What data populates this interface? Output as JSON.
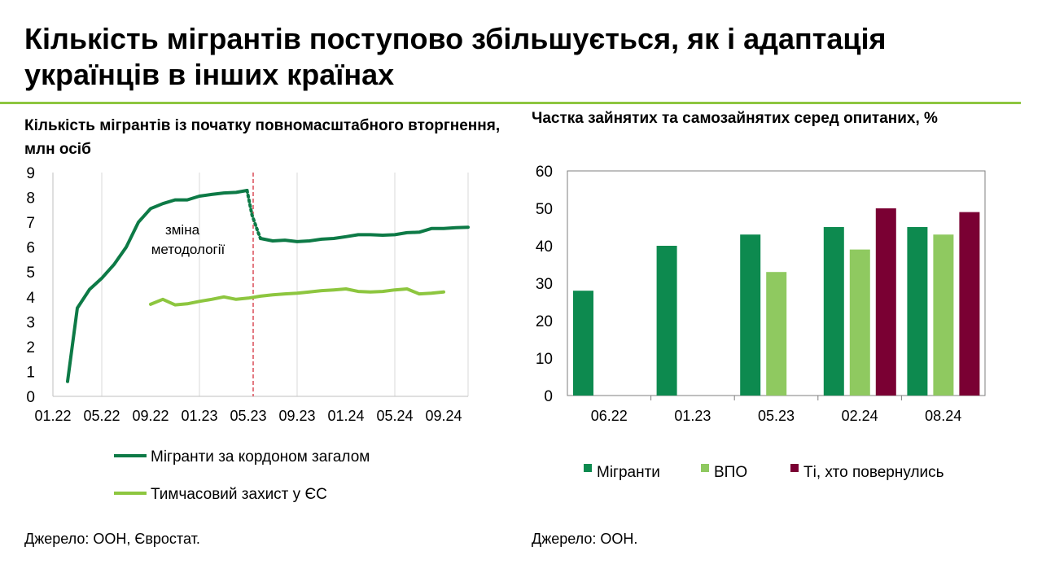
{
  "page": {
    "title": "Кількість мігрантів поступово збільшується,  як і адаптація українців в інших країнах",
    "rule_color": "#8dc63f"
  },
  "left": {
    "subtitle": "Кількість мігрантів із початку повномасштабного вторгнення, млн осіб",
    "source": "Джерело: ООН, Євростат."
  },
  "right": {
    "subtitle": "Частка зайнятих та самозайнятих серед опитаних, %",
    "source": "Джерело: ООН."
  },
  "chart_data": [
    {
      "type": "line",
      "title": "Кількість мігрантів із початку повномасштабного вторгнення, млн осіб",
      "ylim": [
        0,
        9
      ],
      "yticks": [
        0,
        1,
        2,
        3,
        4,
        5,
        6,
        7,
        8,
        9
      ],
      "xlim": [
        0,
        34
      ],
      "xticks": [
        {
          "x": 0,
          "label": "01.22"
        },
        {
          "x": 4,
          "label": "05.22"
        },
        {
          "x": 8,
          "label": "09.22"
        },
        {
          "x": 12,
          "label": "01.23"
        },
        {
          "x": 16,
          "label": "05.23"
        },
        {
          "x": 20,
          "label": "09.23"
        },
        {
          "x": 24,
          "label": "01.24"
        },
        {
          "x": 28,
          "label": "05.24"
        },
        {
          "x": 32,
          "label": "09.24"
        }
      ],
      "grid": "vertical",
      "annotation": {
        "x": 16.4,
        "label": "зміна методології",
        "line_color": "#d0202e"
      },
      "series": [
        {
          "name": "Мігранти за кордоном загалом",
          "color": "#0d7a46",
          "segments": [
            [
              [
                1.2,
                0.6
              ],
              [
                2.0,
                3.55
              ],
              [
                3.0,
                4.3
              ],
              [
                4.0,
                4.75
              ],
              [
                5.0,
                5.3
              ],
              [
                6.0,
                6.0
              ],
              [
                7.0,
                7.0
              ],
              [
                8.0,
                7.55
              ],
              [
                9.0,
                7.75
              ],
              [
                10.0,
                7.9
              ],
              [
                11.0,
                7.9
              ],
              [
                12.0,
                8.05
              ],
              [
                13.0,
                8.12
              ],
              [
                14.0,
                8.18
              ],
              [
                15.0,
                8.2
              ],
              [
                15.9,
                8.28
              ]
            ],
            [
              [
                17.0,
                6.35
              ],
              [
                18.0,
                6.25
              ],
              [
                19.0,
                6.28
              ],
              [
                20.0,
                6.22
              ],
              [
                21.0,
                6.25
              ],
              [
                22.0,
                6.32
              ],
              [
                23.0,
                6.35
              ],
              [
                24.0,
                6.42
              ],
              [
                25.0,
                6.5
              ],
              [
                26.0,
                6.5
              ],
              [
                27.0,
                6.48
              ],
              [
                28.0,
                6.5
              ],
              [
                29.0,
                6.58
              ],
              [
                30.0,
                6.6
              ],
              [
                31.0,
                6.75
              ],
              [
                32.0,
                6.75
              ],
              [
                33.0,
                6.78
              ],
              [
                34.0,
                6.8
              ]
            ]
          ],
          "dotted": [
            [
              15.9,
              8.28
            ],
            [
              16.3,
              7.3
            ],
            [
              16.8,
              6.6
            ],
            [
              17.0,
              6.35
            ]
          ]
        },
        {
          "name": "Тимчасовий захист у ЄС",
          "color": "#8dc63f",
          "segments": [
            [
              [
                8.0,
                3.7
              ],
              [
                9.0,
                3.9
              ],
              [
                10.0,
                3.68
              ],
              [
                11.0,
                3.72
              ],
              [
                12.0,
                3.82
              ],
              [
                13.0,
                3.9
              ],
              [
                14.0,
                4.0
              ],
              [
                15.0,
                3.9
              ],
              [
                16.0,
                3.95
              ],
              [
                17.0,
                4.03
              ],
              [
                18.0,
                4.08
              ],
              [
                19.0,
                4.12
              ],
              [
                20.0,
                4.15
              ],
              [
                21.0,
                4.2
              ],
              [
                22.0,
                4.25
              ],
              [
                23.0,
                4.28
              ],
              [
                24.0,
                4.32
              ],
              [
                25.0,
                4.22
              ],
              [
                26.0,
                4.2
              ],
              [
                27.0,
                4.22
              ],
              [
                28.0,
                4.28
              ],
              [
                29.0,
                4.32
              ],
              [
                30.0,
                4.12
              ],
              [
                31.0,
                4.15
              ],
              [
                32.0,
                4.2
              ]
            ]
          ]
        }
      ],
      "legend": [
        {
          "label": "Мігранти за кордоном загалом",
          "color": "#0d7a46"
        },
        {
          "label": "Тимчасовий захист у ЄС",
          "color": "#8dc63f"
        }
      ]
    },
    {
      "type": "bar",
      "title": "Частка зайнятих та самозайнятих серед опитаних, %",
      "categories": [
        "06.22",
        "01.23",
        "05.23",
        "02.24",
        "08.24"
      ],
      "ylim": [
        0,
        60
      ],
      "yticks": [
        0,
        10,
        20,
        30,
        40,
        50,
        60
      ],
      "series": [
        {
          "name": "Мігранти",
          "color": "#0d8a4f",
          "values": [
            28,
            40,
            43,
            45,
            45
          ]
        },
        {
          "name": "ВПО",
          "color": "#8fc960",
          "values": [
            null,
            null,
            33,
            39,
            43
          ]
        },
        {
          "name": "Ті, хто повернулись",
          "color": "#7a0033",
          "values": [
            null,
            null,
            null,
            50,
            49
          ]
        }
      ]
    }
  ]
}
